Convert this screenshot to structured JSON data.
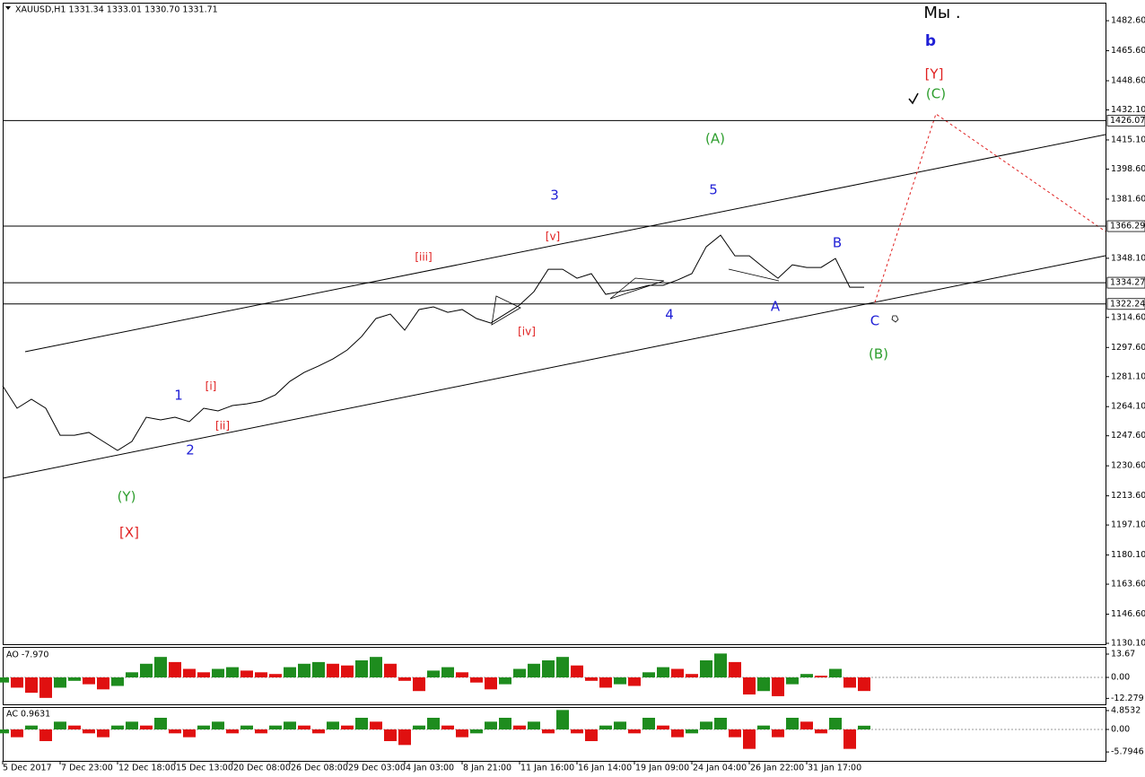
{
  "chart_data": [
    {
      "type": "line",
      "title": "XAUUSD,H1  1331.34 1333.01 1330.70 1331.71",
      "color": "#000000",
      "categories": [
        "5 Dec 2017",
        null,
        null,
        null,
        "7 Dec 23:00",
        null,
        null,
        null,
        "12 Dec 18:00",
        null,
        null,
        null,
        "15 Dec 13:00",
        null,
        null,
        null,
        "20 Dec 08:00",
        null,
        null,
        null,
        "26 Dec 08:00",
        null,
        null,
        null,
        "29 Dec 03:00",
        null,
        null,
        null,
        "4 Jan 03:00",
        null,
        null,
        null,
        "8 Jan 21:00",
        null,
        null,
        null,
        "11 Jan 16:00",
        null,
        null,
        null,
        "16 Jan 14:00",
        null,
        null,
        null,
        "19 Jan 09:00",
        null,
        null,
        null,
        "24 Jan 04:00",
        null,
        null,
        null,
        "26 Jan 22:00",
        null,
        null,
        null,
        "31 Jan 17:00",
        null,
        null,
        null,
        null
      ],
      "values": [
        1275.9,
        1263.2,
        1268.3,
        1263.2,
        1247.9,
        1247.9,
        1249.5,
        1244.4,
        1239.3,
        1244.4,
        1258.1,
        1256.6,
        1258.1,
        1255.6,
        1263.2,
        1261.7,
        1264.7,
        1265.7,
        1267.2,
        1270.8,
        1278.4,
        1283.5,
        1287.1,
        1291.1,
        1296.2,
        1303.8,
        1314.0,
        1316.5,
        1307.4,
        1319.1,
        1320.6,
        1317.5,
        1319.1,
        1314.0,
        1311.4,
        1316.5,
        1321.6,
        1329.2,
        1341.9,
        1341.9,
        1336.8,
        1339.4,
        1327.7,
        1329.2,
        1330.7,
        1332.8,
        1332.8,
        1335.8,
        1339.4,
        1354.6,
        1361.2,
        1349.5,
        1349.5,
        1342.9,
        1336.8,
        1344.4,
        1342.9,
        1342.9,
        1348.0,
        1331.7,
        1331.7
      ],
      "ylim": [
        1129.6,
        1492.8
      ],
      "yticks": [
        {
          "value": 1482.6,
          "label": "1482.60"
        },
        {
          "value": 1465.6,
          "label": "1465.60"
        },
        {
          "value": 1448.6,
          "label": "1448.60"
        },
        {
          "value": 1432.1,
          "label": "1432.10"
        },
        {
          "value": 1415.1,
          "label": "1415.10"
        },
        {
          "value": 1398.6,
          "label": "1398.60"
        },
        {
          "value": 1381.6,
          "label": "1381.60"
        },
        {
          "value": 1348.1,
          "label": "1348.10"
        },
        {
          "value": 1314.6,
          "label": "1314.60"
        },
        {
          "value": 1297.6,
          "label": "1297.60"
        },
        {
          "value": 1281.1,
          "label": "1281.10"
        },
        {
          "value": 1264.1,
          "label": "1264.10"
        },
        {
          "value": 1247.6,
          "label": "1247.60"
        },
        {
          "value": 1230.6,
          "label": "1230.60"
        },
        {
          "value": 1213.6,
          "label": "1213.60"
        },
        {
          "value": 1197.1,
          "label": "1197.10"
        },
        {
          "value": 1180.1,
          "label": "1180.10"
        },
        {
          "value": 1163.6,
          "label": "1163.60"
        },
        {
          "value": 1146.6,
          "label": "1146.60"
        },
        {
          "value": 1130.1,
          "label": "1130.10"
        }
      ],
      "levels": [
        1426.07,
        1366.29,
        1334.27,
        1322.24
      ],
      "annotations": [
        {
          "text": "Мы .",
          "color": "#000000"
        },
        {
          "text": "b",
          "color": "#1f1fd6"
        },
        {
          "text": "[Y]",
          "color": "#e02020"
        },
        {
          "text": "(C)",
          "color": "#2e9e2e"
        },
        {
          "text": "(A)",
          "color": "#2e9e2e"
        },
        {
          "text": "3",
          "color": "#1f1fd6"
        },
        {
          "text": "5",
          "color": "#1f1fd6"
        },
        {
          "text": "[v]",
          "color": "#e02020"
        },
        {
          "text": "[iii]",
          "color": "#e02020"
        },
        {
          "text": "B",
          "color": "#1f1fd6"
        },
        {
          "text": "A",
          "color": "#1f1fd6"
        },
        {
          "text": "4",
          "color": "#1f1fd6"
        },
        {
          "text": "C",
          "color": "#1f1fd6"
        },
        {
          "text": "(B)",
          "color": "#2e9e2e"
        },
        {
          "text": "[iv]",
          "color": "#e02020"
        },
        {
          "text": "1",
          "color": "#1f1fd6"
        },
        {
          "text": "[i]",
          "color": "#e02020"
        },
        {
          "text": "[ii]",
          "color": "#e02020"
        },
        {
          "text": "2",
          "color": "#1f1fd6"
        },
        {
          "text": "(Y)",
          "color": "#2e9e2e"
        },
        {
          "text": "[X]",
          "color": "#e02020"
        }
      ]
    },
    {
      "type": "bar",
      "title": "AO -7.970",
      "up_color": "#1e8c1e",
      "down_color": "#e01010",
      "values": [
        -3,
        -6,
        -9,
        -12,
        -6,
        -2,
        -4,
        -7,
        -5,
        3,
        8,
        12,
        9,
        5,
        3,
        5,
        6,
        4,
        3,
        2,
        6,
        8,
        9,
        8,
        7,
        10,
        12,
        8,
        -2,
        -8,
        4,
        6,
        3,
        -3,
        -7,
        -4,
        5,
        8,
        10,
        12,
        7,
        -2,
        -6,
        -4,
        -5,
        3,
        6,
        5,
        2,
        10,
        14,
        9,
        -10,
        -8,
        -11,
        -4,
        2,
        1,
        5,
        -6,
        -7.97
      ],
      "ylim": [
        -15.77,
        17.88
      ],
      "yticks": [
        13.67,
        {
          "value": 0,
          "label": "0.00"
        },
        -12.279
      ]
    },
    {
      "type": "bar",
      "title": "AC 0.9631",
      "up_color": "#1e8c1e",
      "down_color": "#e01010",
      "values": [
        -1,
        -2,
        1,
        -3,
        2,
        1,
        -1,
        -2,
        1,
        2,
        1,
        3,
        -1,
        -2,
        1,
        2,
        -1,
        1,
        -1,
        1,
        2,
        1,
        -1,
        2,
        1,
        3,
        2,
        -3,
        -4,
        1,
        3,
        1,
        -2,
        -1,
        2,
        3,
        1,
        2,
        -1,
        5,
        -1,
        -3,
        1,
        2,
        -1,
        3,
        1,
        -2,
        -1,
        2,
        3,
        -2,
        -5,
        1,
        -2,
        3,
        2,
        -1,
        3,
        -5,
        0.9631
      ],
      "ylim": [
        -8.08,
        5.77
      ],
      "yticks": [
        4.8532,
        {
          "value": 0,
          "label": "0.00"
        },
        -5.7946
      ]
    }
  ]
}
